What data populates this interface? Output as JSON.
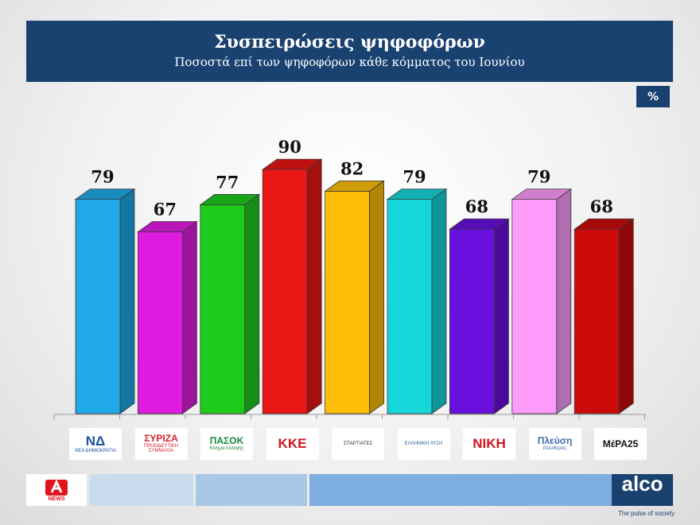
{
  "header": {
    "title": "Συσπειρώσεις ψηφοφόρων",
    "subtitle": "Ποσοστά επί των ψηφοφόρων κάθε κόμματος του Ιουνίου"
  },
  "unit_badge": "%",
  "chart_data": {
    "type": "bar",
    "title": "Συσπειρώσεις ψηφοφόρων",
    "subtitle": "Ποσοστά επί των ψηφοφόρων κάθε κόμματος του Ιουνίου",
    "categories": [
      "ΝΔ",
      "ΣΥΡΙΖΑ",
      "ΠΑΣΟΚ",
      "ΚΚΕ",
      "Σπαρτιάτες",
      "Ελληνική Λύση",
      "ΝΙΚΗ",
      "Πλεύση Ελευθερίας",
      "ΜέΡΑ25"
    ],
    "values": [
      79,
      67,
      77,
      90,
      82,
      79,
      68,
      79,
      68
    ],
    "colors": [
      "#1fa9e9",
      "#e01be0",
      "#1ccb1c",
      "#ea1515",
      "#fdbe08",
      "#16d6da",
      "#6a10de",
      "#fc9bfa",
      "#cc0a0a"
    ],
    "unit": "%",
    "ylim": [
      0,
      100
    ],
    "grid": false,
    "legend": "none"
  },
  "logos": [
    {
      "name": "ΝΔ",
      "caption": "ΝΕΑ ΔΗΜΟΚΡΑΤΙΑ",
      "color": "#1f4fa3"
    },
    {
      "name": "ΣΥΡΙΖΑ",
      "caption": "ΠΡΟΟΔΕΥΤΙΚΗ ΣΥΜΜΑΧΙΑ",
      "color": "#d6202a"
    },
    {
      "name": "ΠΑΣΟΚ",
      "caption": "Κίνημα Αλλαγής",
      "color": "#1a8a3a"
    },
    {
      "name": "ΚΚΕ",
      "caption": "",
      "color": "#d0161e"
    },
    {
      "name": "",
      "caption": "ΣΠΑΡΤΙΑΤΕΣ",
      "color": "#333333"
    },
    {
      "name": "",
      "caption": "ΕΛΛΗΝΙΚΗ ΛΥΣΗ",
      "color": "#2a5c9a"
    },
    {
      "name": "ΝΙΚΗ",
      "caption": "",
      "color": "#d0161e"
    },
    {
      "name": "Πλεύση",
      "caption": "Ελευθερίας",
      "color": "#3a6bb0"
    },
    {
      "name": "ΜέΡΑ25",
      "caption": "",
      "color": "#111111"
    }
  ],
  "footer": {
    "alpha_name": "NEWS",
    "alco_name": "alco",
    "alco_tag": "The pulse of society"
  }
}
